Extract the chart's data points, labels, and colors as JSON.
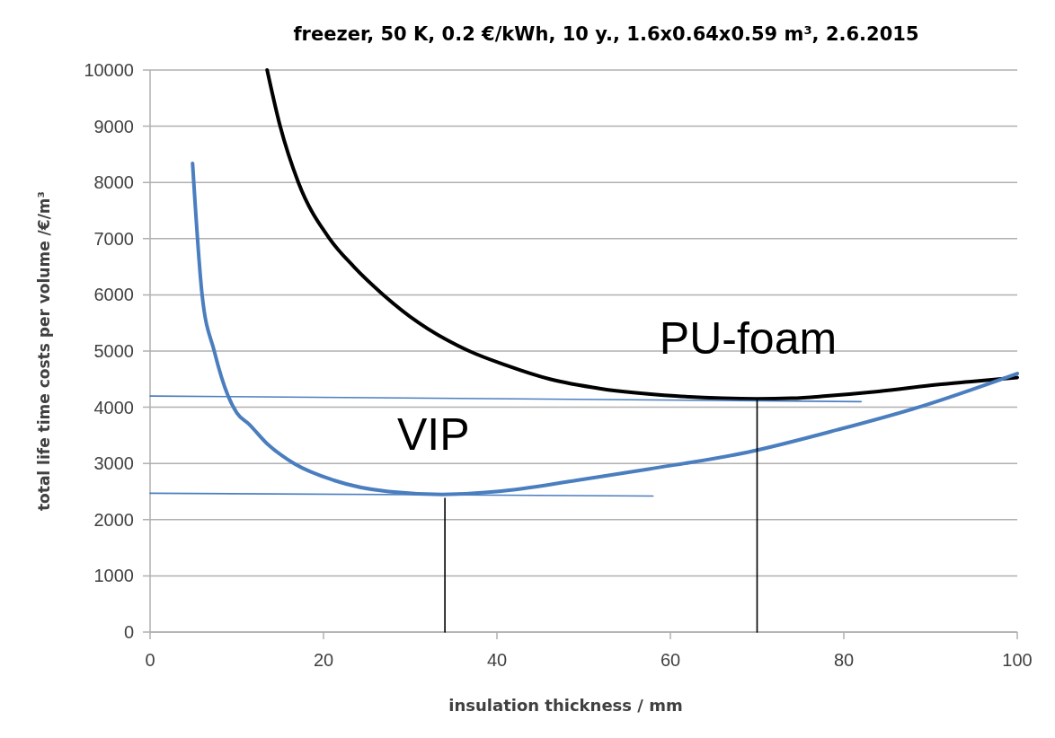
{
  "chart_data": {
    "type": "line",
    "title": "freezer, 50 K, 0.2 €/kWh, 10 y., 1.6x0.64x0.59 m³, 2.6.2015",
    "xlabel": "insulation thickness / mm",
    "ylabel": "total life time  costs per volume /€/m³",
    "xlim": [
      0,
      100
    ],
    "xticks": [
      0,
      20,
      40,
      60,
      80,
      100
    ],
    "ylim": [
      0,
      10000
    ],
    "yticks": [
      0,
      1000,
      2000,
      3000,
      4000,
      5000,
      6000,
      7000,
      8000,
      9000,
      10000
    ],
    "grid": "y",
    "legend": false,
    "series": [
      {
        "name": "PU-foam",
        "color": "#000000",
        "x": [
          13.5,
          15,
          17.1,
          20.7,
          23.5,
          26.9,
          31,
          36.8,
          41,
          46.1,
          52,
          60.6,
          66,
          70,
          74,
          78,
          84,
          90.7,
          95,
          100
        ],
        "values": [
          10000,
          9000,
          8000,
          7000,
          6500,
          6000,
          5500,
          5000,
          4750,
          4500,
          4330,
          4200,
          4160,
          4150,
          4160,
          4200,
          4280,
          4400,
          4460,
          4530
        ]
      },
      {
        "name": "VIP",
        "color": "#4a7ebf",
        "x": [
          4.9,
          6,
          7.4,
          9,
          10,
          11.4,
          13.5,
          16.6,
          21.2,
          27.5,
          33.7,
          39.9,
          49.2,
          57.5,
          68.9,
          79.3,
          88.6,
          100
        ],
        "values": [
          8340,
          6000,
          5000,
          4200,
          3900,
          3700,
          3350,
          3000,
          2700,
          2500,
          2450,
          2500,
          2700,
          2900,
          3200,
          3600,
          4000,
          4600
        ]
      },
      {
        "color": "#4a7ebf",
        "x": [
          0,
          82
        ],
        "values": [
          4200,
          4100
        ]
      },
      {
        "color": "#4a7ebf",
        "x": [
          0,
          58
        ],
        "values": [
          2470,
          2420
        ]
      },
      {
        "color": "#000000",
        "x": [
          34,
          34
        ],
        "values": [
          0,
          2380
        ]
      },
      {
        "color": "#000000",
        "x": [
          70,
          70
        ],
        "values": [
          0,
          4150
        ]
      }
    ]
  }
}
